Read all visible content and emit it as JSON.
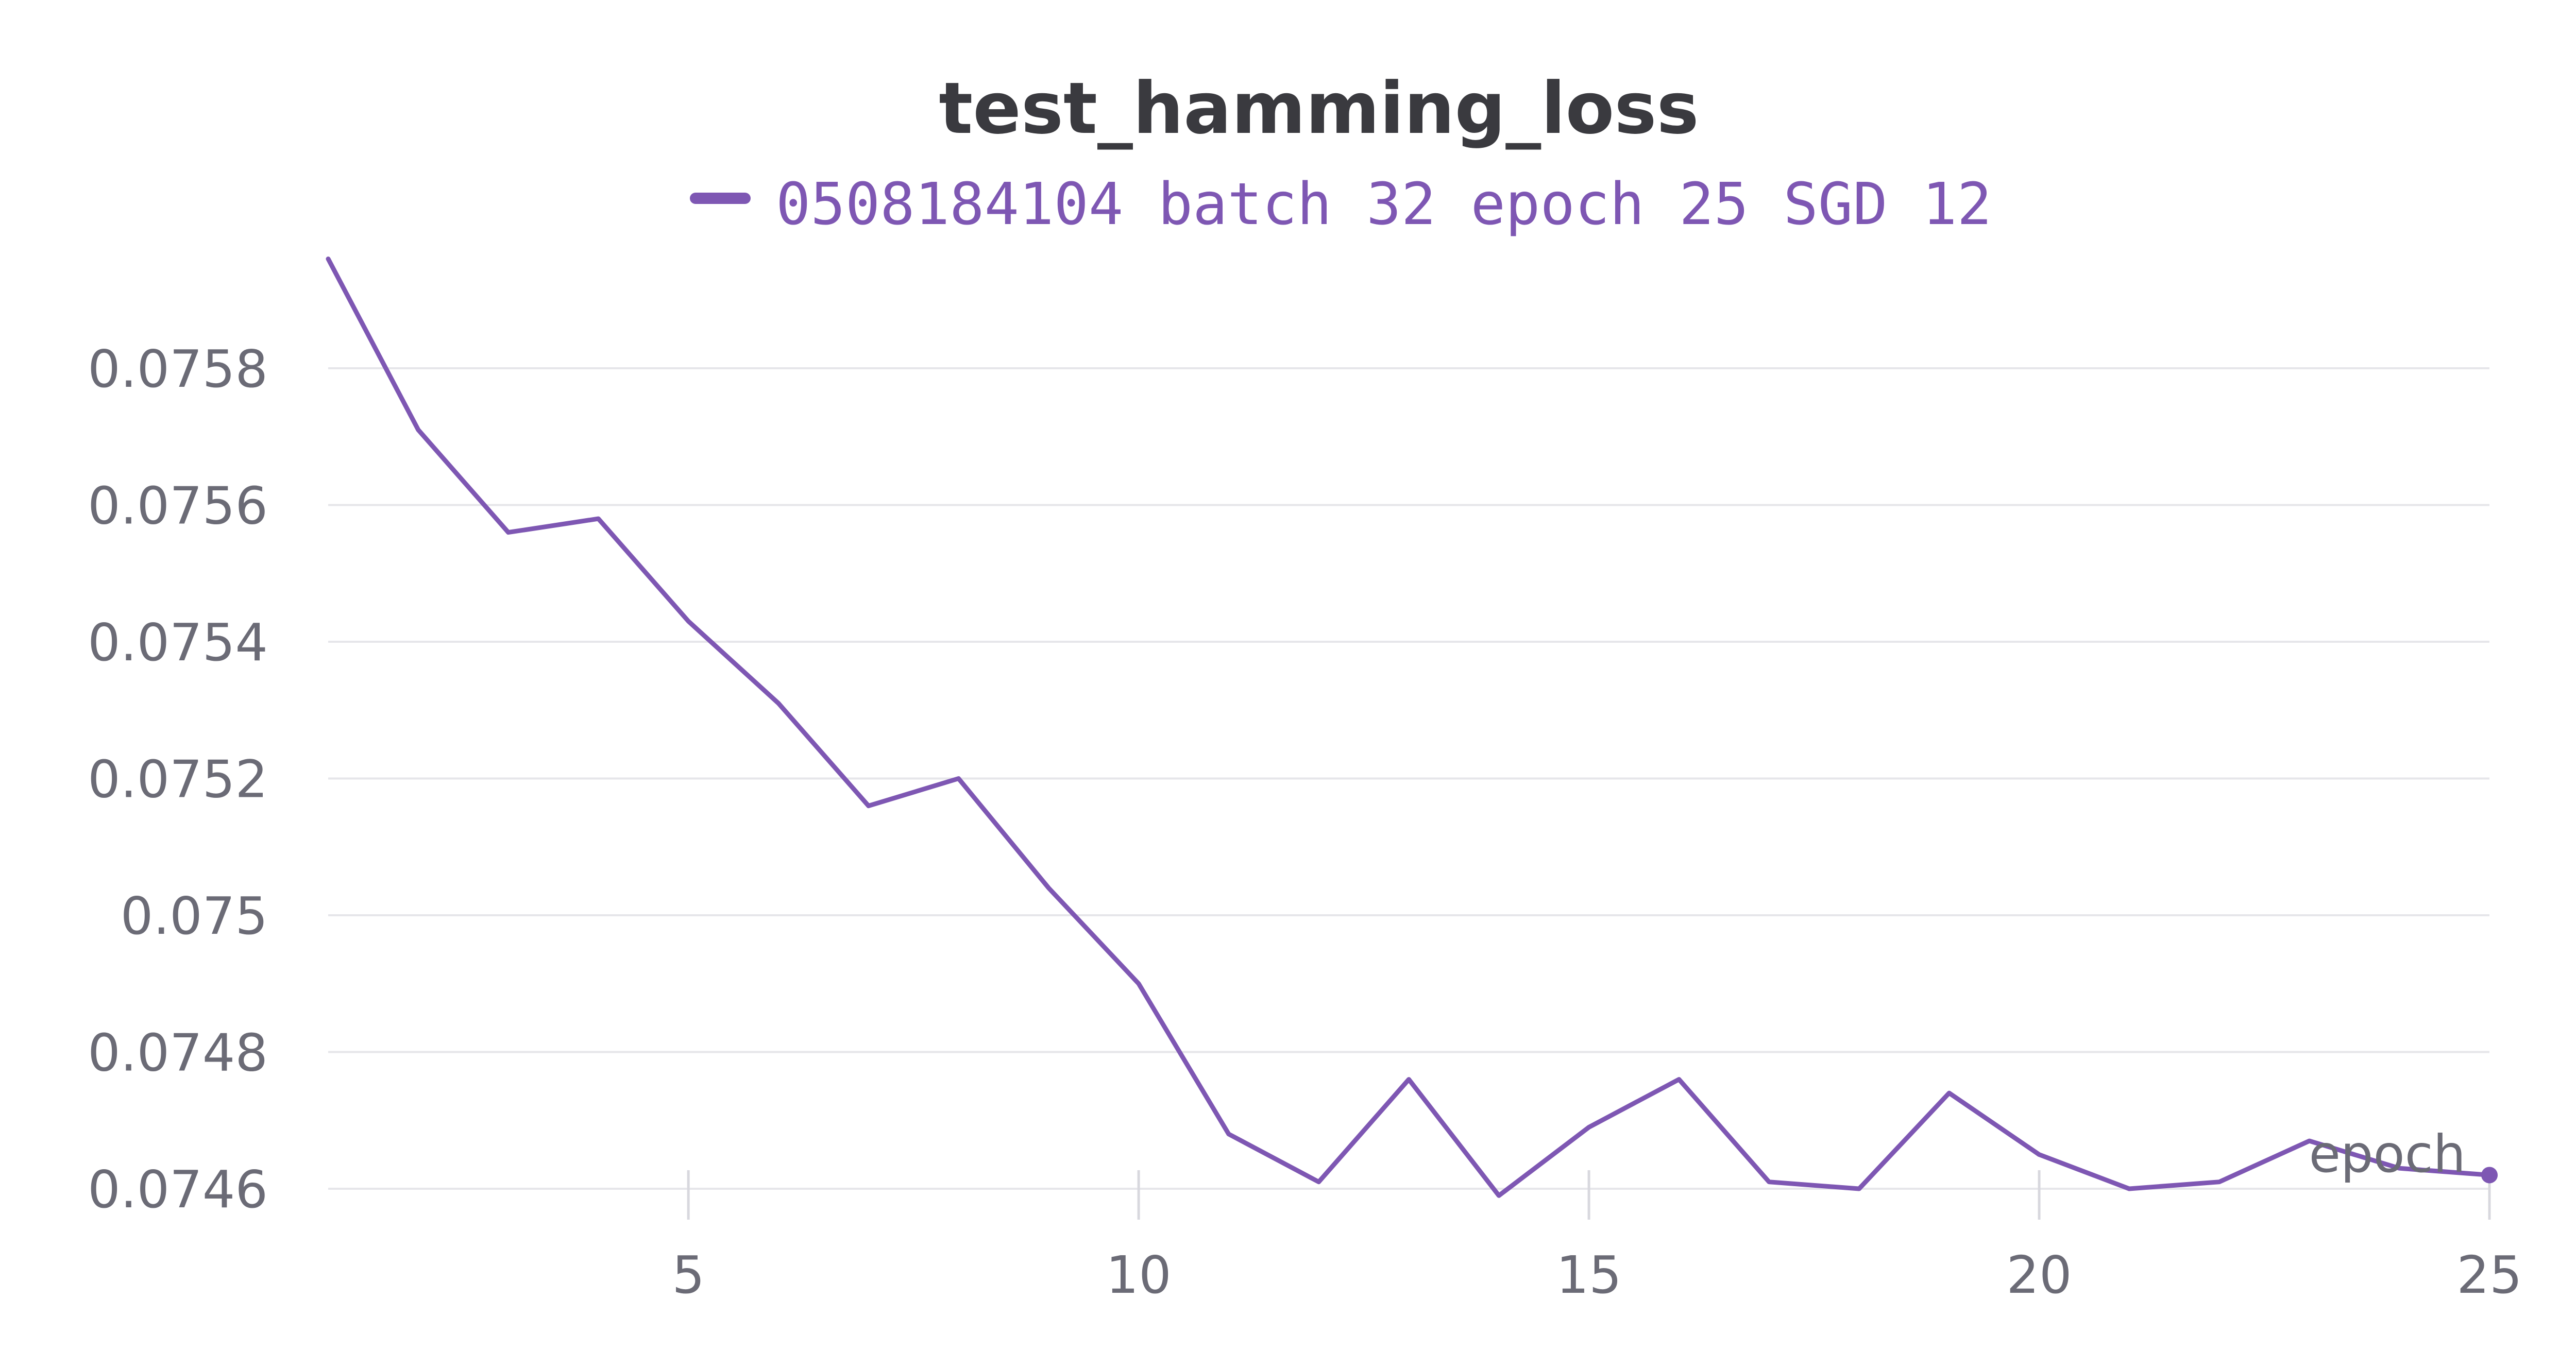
{
  "chart_data": {
    "type": "line",
    "title": "test_hamming_loss",
    "xlabel": "epoch",
    "ylabel": "",
    "xlim": [
      1,
      25
    ],
    "ylim": [
      0.07458,
      0.07596
    ],
    "x_ticks": [
      5,
      10,
      15,
      20,
      25
    ],
    "y_ticks": [
      0.0746,
      0.0748,
      0.075,
      0.0752,
      0.0754,
      0.0756,
      0.0758
    ],
    "y_tick_labels": [
      "0.0746",
      "0.0748",
      "0.075",
      "0.0752",
      "0.0754",
      "0.0756",
      "0.0758"
    ],
    "grid": "horizontal",
    "legend": "top-center",
    "series": [
      {
        "name": "0508184104 batch 32 epoch 25 SGD 12",
        "color": "#7e57b3",
        "x": [
          1,
          2,
          3,
          4,
          5,
          6,
          7,
          8,
          9,
          10,
          11,
          12,
          13,
          14,
          15,
          16,
          17,
          18,
          19,
          20,
          21,
          22,
          23,
          24,
          25
        ],
        "values": [
          0.07596,
          0.07571,
          0.07556,
          0.07558,
          0.07543,
          0.07531,
          0.07516,
          0.0752,
          0.07504,
          0.0749,
          0.07468,
          0.07461,
          0.07476,
          0.07459,
          0.07469,
          0.07476,
          0.07461,
          0.0746,
          0.07474,
          0.07465,
          0.0746,
          0.07461,
          0.07467,
          0.07463,
          0.07462
        ]
      }
    ]
  }
}
